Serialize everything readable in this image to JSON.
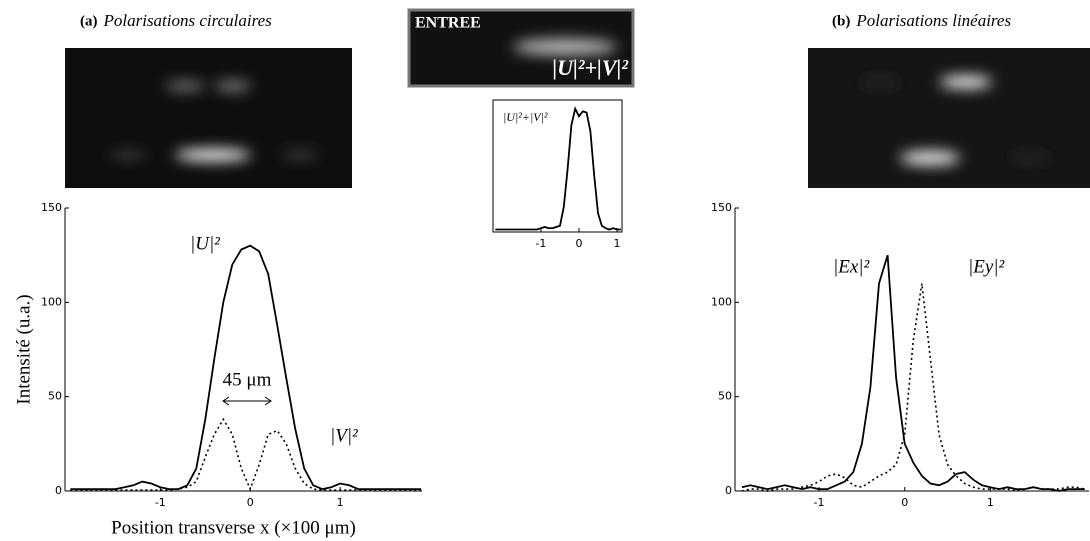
{
  "chart_data": [
    {
      "type": "line",
      "panel": "(a)",
      "title": "Polarisations circulaires",
      "ylabel": "Intensité (u.a.)",
      "xlabel": "Position transverse x (×100 μm)",
      "x": [
        -2.0,
        -1.9,
        -1.8,
        -1.7,
        -1.6,
        -1.5,
        -1.4,
        -1.3,
        -1.2,
        -1.1,
        -1.0,
        -0.9,
        -0.8,
        -0.7,
        -0.6,
        -0.5,
        -0.4,
        -0.3,
        -0.2,
        -0.1,
        0.0,
        0.1,
        0.2,
        0.3,
        0.4,
        0.5,
        0.6,
        0.7,
        0.8,
        0.9,
        1.0,
        1.1,
        1.2,
        1.3,
        1.4,
        1.5,
        1.6,
        1.7,
        1.8,
        1.9
      ],
      "series": [
        {
          "name": "|U|²",
          "color": "#000000",
          "style": "solid",
          "values": [
            1,
            1,
            1,
            1,
            1,
            1,
            2,
            3,
            5,
            4,
            2,
            1,
            1,
            3,
            12,
            38,
            70,
            100,
            120,
            128,
            130,
            127,
            115,
            88,
            60,
            33,
            12,
            3,
            1,
            2,
            4,
            3,
            1,
            1,
            1,
            1,
            1,
            1,
            1,
            1
          ]
        },
        {
          "name": "|V|²",
          "color": "#000000",
          "style": "dotted",
          "values": [
            0.5,
            0.5,
            0.5,
            0.5,
            0.5,
            0.5,
            0.5,
            0.5,
            0.5,
            0.5,
            0.5,
            0.5,
            1,
            2,
            5,
            18,
            30,
            38,
            30,
            12,
            1,
            14,
            30,
            32,
            25,
            12,
            4,
            1,
            0.5,
            0.5,
            0.5,
            0.5,
            0.5,
            0.5,
            0.5,
            0.5,
            0.5,
            0.5,
            0.5,
            0.5
          ]
        }
      ],
      "annotations": [
        "45 μm"
      ],
      "xlim": [
        -2.06,
        1.91
      ],
      "xticks": [
        -1,
        0,
        1
      ],
      "ylim": [
        0,
        150
      ],
      "yticks": [
        0,
        50,
        100,
        150
      ]
    },
    {
      "type": "line",
      "title": "ENTREE",
      "image_label": "|U|²+|V|²",
      "x": [
        -2.2,
        -2.1,
        -2.0,
        -1.9,
        -1.8,
        -1.7,
        -1.6,
        -1.5,
        -1.4,
        -1.3,
        -1.2,
        -1.1,
        -1.0,
        -0.9,
        -0.8,
        -0.7,
        -0.6,
        -0.5,
        -0.4,
        -0.3,
        -0.2,
        -0.1,
        0.0,
        0.1,
        0.2,
        0.3,
        0.4,
        0.5,
        0.6,
        0.7,
        0.8,
        0.9,
        1.0,
        1.1
      ],
      "series": [
        {
          "name": "|U|²+|V|²",
          "color": "#000000",
          "style": "solid",
          "values": [
            0.02,
            0.02,
            0.02,
            0.02,
            0.02,
            0.02,
            0.02,
            0.02,
            0.02,
            0.02,
            0.02,
            0.02,
            0.03,
            0.04,
            0.03,
            0.03,
            0.04,
            0.05,
            0.2,
            0.5,
            0.85,
            0.98,
            0.92,
            0.96,
            0.95,
            0.8,
            0.45,
            0.15,
            0.05,
            0.03,
            0.02,
            0.03,
            0.02,
            0.02
          ]
        }
      ],
      "xlim": [
        -2.26,
        1.13
      ],
      "xticks": [
        -1,
        0,
        1
      ],
      "ylim": [
        0,
        1.05
      ]
    },
    {
      "type": "line",
      "panel": "(b)",
      "title": "Polarisations linéaires",
      "x": [
        -1.9,
        -1.8,
        -1.7,
        -1.6,
        -1.5,
        -1.4,
        -1.3,
        -1.2,
        -1.1,
        -1.0,
        -0.9,
        -0.8,
        -0.7,
        -0.6,
        -0.5,
        -0.4,
        -0.3,
        -0.2,
        -0.1,
        0.0,
        0.1,
        0.2,
        0.3,
        0.4,
        0.5,
        0.6,
        0.7,
        0.8,
        0.9,
        1.0,
        1.1,
        1.2,
        1.3,
        1.4,
        1.5,
        1.6,
        1.7,
        1.8,
        1.9,
        2.0,
        2.1
      ],
      "series": [
        {
          "name": "|Ex|²",
          "color": "#000000",
          "style": "solid",
          "values": [
            2,
            3,
            2,
            1,
            2,
            3,
            2,
            1,
            2,
            1,
            1,
            3,
            5,
            10,
            25,
            55,
            110,
            125,
            60,
            25,
            15,
            8,
            4,
            3,
            5,
            9,
            10,
            6,
            3,
            2,
            1,
            2,
            1,
            1,
            2,
            1,
            1,
            0,
            1,
            1,
            1
          ]
        },
        {
          "name": "|Ey|²",
          "color": "#000000",
          "style": "dotted",
          "values": [
            0,
            1,
            1,
            0,
            1,
            1,
            1,
            2,
            3,
            5,
            8,
            9,
            7,
            3,
            2,
            5,
            8,
            10,
            14,
            30,
            80,
            110,
            70,
            30,
            14,
            8,
            4,
            2,
            1,
            1,
            1,
            1,
            0,
            1,
            2,
            1,
            1,
            1,
            2,
            2,
            1
          ]
        }
      ],
      "xlim": [
        -1.98,
        2.15
      ],
      "xticks": [
        -1,
        0,
        1
      ],
      "ylim": [
        0,
        150
      ],
      "yticks": [
        0,
        50,
        100,
        150
      ]
    }
  ]
}
